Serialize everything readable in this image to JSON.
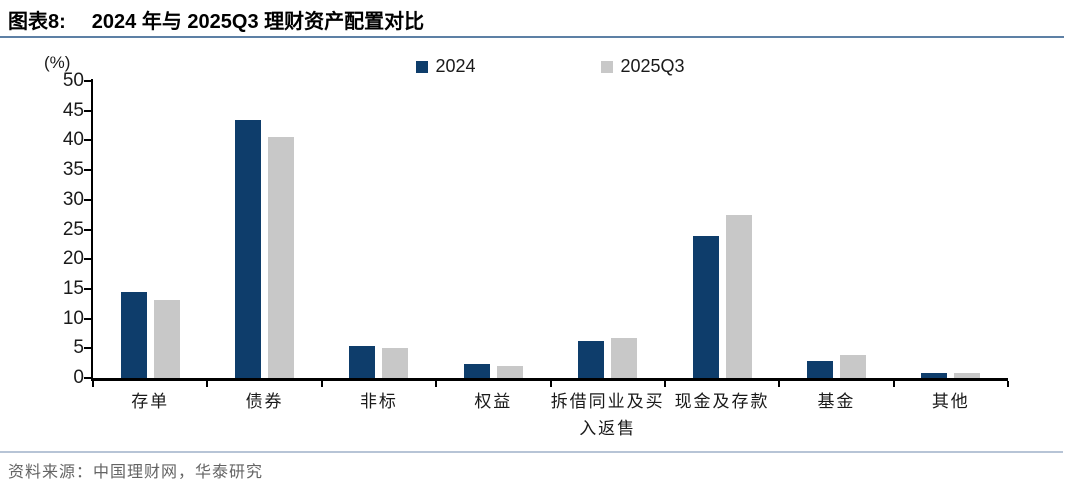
{
  "header": {
    "tag": "图表8:",
    "title": "2024 年与 2025Q3 理财资产配置对比"
  },
  "chart_data": {
    "type": "bar",
    "title": "2024 年与 2025Q3 理财资产配置对比",
    "unit_label": "(%)",
    "categories": [
      "存单",
      "债券",
      "非标",
      "权益",
      "拆借同业及买\n入返售",
      "现金及存款",
      "基金",
      "其他"
    ],
    "series": [
      {
        "name": "2024",
        "color": "#0e3d6b",
        "values": [
          14.5,
          43.5,
          5.4,
          2.4,
          6.3,
          23.9,
          2.8,
          0.9
        ]
      },
      {
        "name": "2025Q3",
        "color": "#c8c8c8",
        "values": [
          13.2,
          40.5,
          5.1,
          2.1,
          6.8,
          27.5,
          3.9,
          0.8
        ]
      }
    ],
    "ylim": [
      0,
      50
    ],
    "ytick_step": 5,
    "legend_position": "top-center",
    "grid": false
  },
  "footer": {
    "source": "资料来源：中国理财网，华泰研究"
  },
  "colors": {
    "series_2024": "#0e3d6b",
    "series_2025q3": "#c8c8c8",
    "title_rule": "#5d80a5",
    "footer_rule": "#b7c4d6",
    "axis": "#000000"
  }
}
